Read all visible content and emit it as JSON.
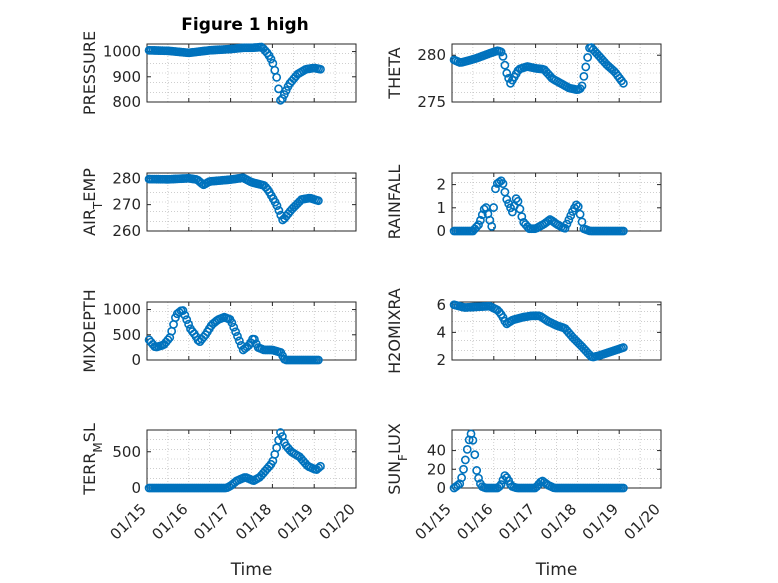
{
  "figure_title": "Figure 1 high",
  "colors": {
    "marker": "#0072BD",
    "axis": "#262626",
    "grid": "#b0b0b0"
  },
  "time_ticks": [
    "01/15",
    "01/16",
    "01/17",
    "01/18",
    "01/19",
    "01/20"
  ],
  "chart_data": [
    {
      "type": "scatter",
      "title": "Figure 1 high",
      "ylabel": "PRESSURE",
      "xlabel": "",
      "ylim": [
        800,
        1030
      ],
      "yticks": [
        800,
        900,
        1000
      ],
      "xlim": [
        0,
        5
      ],
      "anchors": [
        [
          0.05,
          1005
        ],
        [
          0.5,
          1003
        ],
        [
          1.0,
          995
        ],
        [
          1.5,
          1005
        ],
        [
          2.0,
          1010
        ],
        [
          2.3,
          1015
        ],
        [
          2.5,
          1015
        ],
        [
          2.75,
          1018
        ],
        [
          2.9,
          990
        ],
        [
          3.0,
          960
        ],
        [
          3.1,
          900
        ],
        [
          3.2,
          800
        ],
        [
          3.4,
          870
        ],
        [
          3.6,
          910
        ],
        [
          3.8,
          930
        ],
        [
          4.0,
          935
        ],
        [
          4.15,
          930
        ]
      ]
    },
    {
      "type": "scatter",
      "title": "",
      "ylabel": "THETA",
      "xlabel": "",
      "ylim": [
        275,
        281.2
      ],
      "yticks": [
        275,
        280
      ],
      "xlim": [
        0,
        5
      ],
      "anchors": [
        [
          0.05,
          279.5
        ],
        [
          0.2,
          279.2
        ],
        [
          0.45,
          279.5
        ],
        [
          0.6,
          279.7
        ],
        [
          0.9,
          280.2
        ],
        [
          1.1,
          280.5
        ],
        [
          1.2,
          280.3
        ],
        [
          1.3,
          278.2
        ],
        [
          1.4,
          277
        ],
        [
          1.6,
          278.5
        ],
        [
          1.8,
          278.8
        ],
        [
          2.0,
          278.6
        ],
        [
          2.2,
          278.5
        ],
        [
          2.4,
          277.5
        ],
        [
          2.6,
          277
        ],
        [
          2.8,
          276.5
        ],
        [
          3.0,
          276.3
        ],
        [
          3.1,
          276.5
        ],
        [
          3.3,
          281
        ],
        [
          3.5,
          280
        ],
        [
          3.7,
          279
        ],
        [
          3.9,
          278.2
        ],
        [
          4.1,
          277
        ]
      ]
    },
    {
      "type": "scatter",
      "title": "",
      "ylabel": "AIR_TEMP",
      "xlabel": "",
      "ylim": [
        260,
        282
      ],
      "yticks": [
        260,
        270,
        280
      ],
      "xlim": [
        0,
        5
      ],
      "anchors": [
        [
          0.05,
          279.7
        ],
        [
          0.5,
          279.6
        ],
        [
          1.0,
          280
        ],
        [
          1.2,
          279.5
        ],
        [
          1.35,
          277.5
        ],
        [
          1.5,
          278.8
        ],
        [
          2.0,
          279.5
        ],
        [
          2.3,
          280.2
        ],
        [
          2.5,
          278.5
        ],
        [
          2.8,
          277.3
        ],
        [
          2.9,
          275.5
        ],
        [
          3.1,
          270
        ],
        [
          3.25,
          264
        ],
        [
          3.45,
          268
        ],
        [
          3.7,
          272
        ],
        [
          3.9,
          272.5
        ],
        [
          4.1,
          271.5
        ]
      ]
    },
    {
      "type": "scatter",
      "title": "",
      "ylabel": "RAINFALL",
      "xlabel": "",
      "ylim": [
        0,
        2.5
      ],
      "yticks": [
        0,
        1,
        2
      ],
      "xlim": [
        0,
        5
      ],
      "anchors": [
        [
          0.05,
          0
        ],
        [
          0.2,
          0
        ],
        [
          0.5,
          0
        ],
        [
          0.65,
          0.3
        ],
        [
          0.8,
          1.1
        ],
        [
          0.95,
          0.2
        ],
        [
          1.05,
          2.0
        ],
        [
          1.2,
          2.2
        ],
        [
          1.3,
          1.4
        ],
        [
          1.45,
          0.8
        ],
        [
          1.55,
          1.5
        ],
        [
          1.7,
          0.4
        ],
        [
          1.85,
          0.1
        ],
        [
          2.0,
          0.1
        ],
        [
          2.2,
          0.3
        ],
        [
          2.35,
          0.5
        ],
        [
          2.5,
          0.3
        ],
        [
          2.7,
          0.1
        ],
        [
          2.9,
          0.9
        ],
        [
          3.0,
          1.2
        ],
        [
          3.15,
          0.1
        ],
        [
          3.3,
          0
        ],
        [
          3.6,
          0
        ],
        [
          4.1,
          0
        ]
      ]
    },
    {
      "type": "scatter",
      "title": "",
      "ylabel": "MIXDEPTH",
      "xlabel": "",
      "ylim": [
        0,
        1150
      ],
      "yticks": [
        0,
        500,
        1000
      ],
      "xlim": [
        0,
        5
      ],
      "anchors": [
        [
          0.05,
          400
        ],
        [
          0.2,
          250
        ],
        [
          0.4,
          300
        ],
        [
          0.55,
          450
        ],
        [
          0.7,
          900
        ],
        [
          0.85,
          1000
        ],
        [
          0.95,
          800
        ],
        [
          1.05,
          600
        ],
        [
          1.15,
          500
        ],
        [
          1.25,
          350
        ],
        [
          1.4,
          500
        ],
        [
          1.55,
          700
        ],
        [
          1.7,
          800
        ],
        [
          1.85,
          850
        ],
        [
          2.0,
          800
        ],
        [
          2.15,
          500
        ],
        [
          2.3,
          200
        ],
        [
          2.45,
          300
        ],
        [
          2.55,
          450
        ],
        [
          2.65,
          250
        ],
        [
          2.8,
          200
        ],
        [
          3.0,
          200
        ],
        [
          3.2,
          150
        ],
        [
          3.3,
          0
        ],
        [
          3.6,
          0
        ],
        [
          4.1,
          0
        ]
      ]
    },
    {
      "type": "scatter",
      "title": "",
      "ylabel": "H2OMIXRA",
      "xlabel": "",
      "ylim": [
        2,
        6.2
      ],
      "yticks": [
        2,
        4,
        6
      ],
      "xlim": [
        0,
        5
      ],
      "anchors": [
        [
          0.05,
          6.0
        ],
        [
          0.3,
          5.8
        ],
        [
          0.6,
          5.85
        ],
        [
          0.9,
          5.9
        ],
        [
          1.1,
          5.6
        ],
        [
          1.2,
          5.2
        ],
        [
          1.3,
          4.6
        ],
        [
          1.45,
          4.9
        ],
        [
          1.7,
          5.1
        ],
        [
          1.9,
          5.2
        ],
        [
          2.1,
          5.2
        ],
        [
          2.3,
          4.8
        ],
        [
          2.5,
          4.5
        ],
        [
          2.7,
          4.3
        ],
        [
          2.9,
          3.6
        ],
        [
          3.1,
          3.0
        ],
        [
          3.25,
          2.5
        ],
        [
          3.35,
          2.2
        ],
        [
          3.5,
          2.3
        ],
        [
          3.7,
          2.5
        ],
        [
          3.9,
          2.7
        ],
        [
          4.1,
          2.9
        ]
      ]
    },
    {
      "type": "scatter",
      "title": "",
      "ylabel": "TERR_MSL",
      "xlabel": "Time",
      "ylim": [
        0,
        800
      ],
      "yticks": [
        0,
        500
      ],
      "xlim": [
        0,
        5
      ],
      "anchors": [
        [
          0.05,
          0
        ],
        [
          1.0,
          0
        ],
        [
          1.9,
          0
        ],
        [
          2.0,
          30
        ],
        [
          2.15,
          100
        ],
        [
          2.35,
          150
        ],
        [
          2.55,
          100
        ],
        [
          2.7,
          150
        ],
        [
          2.85,
          250
        ],
        [
          3.0,
          350
        ],
        [
          3.1,
          550
        ],
        [
          3.2,
          780
        ],
        [
          3.3,
          600
        ],
        [
          3.45,
          500
        ],
        [
          3.65,
          430
        ],
        [
          3.85,
          300
        ],
        [
          4.05,
          250
        ],
        [
          4.15,
          300
        ]
      ]
    },
    {
      "type": "scatter",
      "title": "",
      "ylabel": "SUN_FLUX",
      "xlabel": "Time",
      "ylim": [
        0,
        62
      ],
      "yticks": [
        0,
        20,
        40
      ],
      "xlim": [
        0,
        5
      ],
      "anchors": [
        [
          0.05,
          0
        ],
        [
          0.2,
          5
        ],
        [
          0.3,
          25
        ],
        [
          0.4,
          50
        ],
        [
          0.47,
          60
        ],
        [
          0.52,
          45
        ],
        [
          0.6,
          15
        ],
        [
          0.7,
          2
        ],
        [
          0.8,
          0
        ],
        [
          1.1,
          0
        ],
        [
          1.2,
          5
        ],
        [
          1.25,
          14
        ],
        [
          1.33,
          10
        ],
        [
          1.42,
          2
        ],
        [
          1.55,
          0
        ],
        [
          2.0,
          0
        ],
        [
          2.15,
          8
        ],
        [
          2.3,
          3
        ],
        [
          2.45,
          0
        ],
        [
          3.0,
          0
        ],
        [
          4.1,
          0
        ]
      ]
    }
  ]
}
